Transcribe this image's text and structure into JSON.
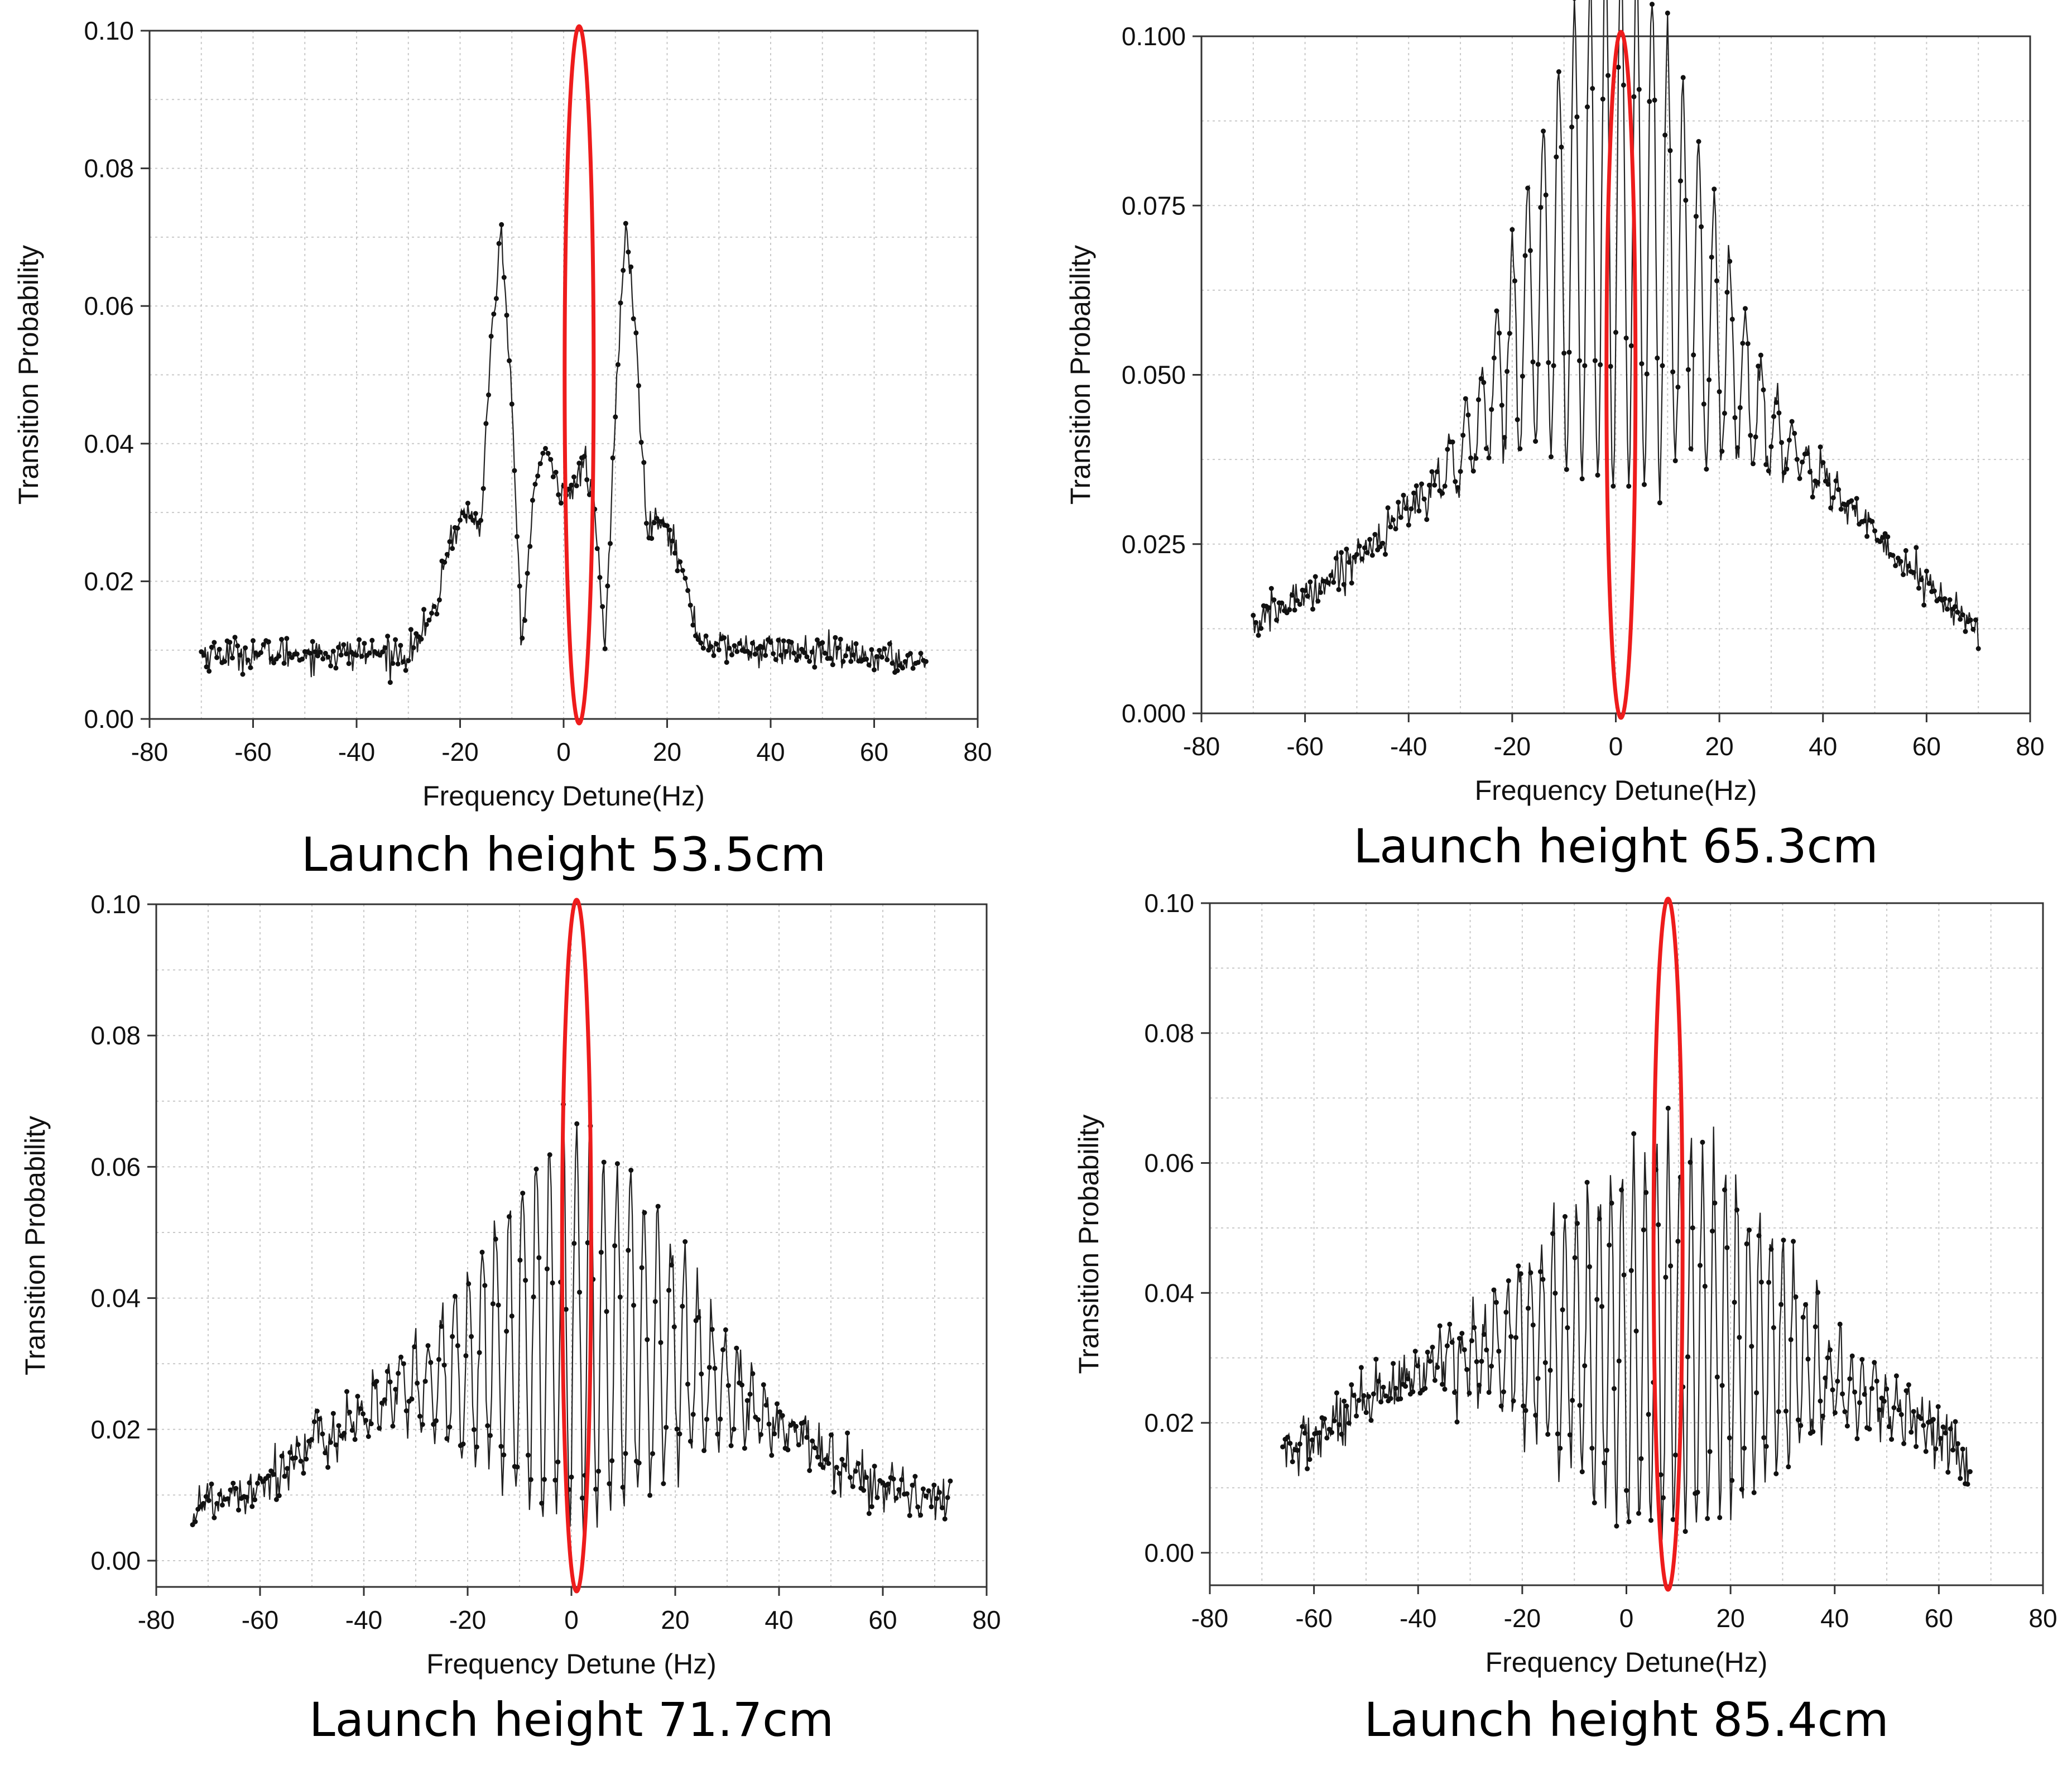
{
  "chart_data": [
    {
      "type": "line",
      "id": "p1",
      "caption": "Launch height 53.5cm",
      "xlabel": "Frequency Detune(Hz)",
      "ylabel": "Transition Probability",
      "xlim": [
        -80,
        80
      ],
      "ylim": [
        0,
        0.1
      ],
      "xticks": [
        -80,
        -60,
        -40,
        -20,
        0,
        20,
        40,
        60,
        80
      ],
      "xtick_labels": [
        "-80",
        "-60",
        "-40",
        "-20",
        "0",
        "20",
        "40",
        "60",
        "80"
      ],
      "yticks": [
        0,
        0.02,
        0.04,
        0.06,
        0.08,
        0.1
      ],
      "ytick_labels": [
        "0.00",
        "0.02",
        "0.04",
        "0.06",
        "0.08",
        "0.10"
      ],
      "x_range": [
        -70,
        70
      ],
      "grid": true,
      "highlight_x": 3,
      "highlight_color": "#ee1c1c",
      "profile": [
        [
          -70,
          0.0095
        ],
        [
          -30,
          0.0095
        ],
        [
          -25,
          0.015
        ],
        [
          -22,
          0.026
        ],
        [
          -19,
          0.03
        ],
        [
          -16,
          0.028
        ],
        [
          -14,
          0.055
        ],
        [
          -12,
          0.071
        ],
        [
          -10,
          0.045
        ],
        [
          -8,
          0.01
        ],
        [
          -6,
          0.032
        ],
        [
          -4,
          0.039
        ],
        [
          -1,
          0.034
        ],
        [
          2,
          0.033
        ],
        [
          4,
          0.038
        ],
        [
          6,
          0.03
        ],
        [
          8,
          0.01
        ],
        [
          10,
          0.045
        ],
        [
          12,
          0.072
        ],
        [
          14,
          0.055
        ],
        [
          16,
          0.028
        ],
        [
          19,
          0.03
        ],
        [
          22,
          0.024
        ],
        [
          26,
          0.012
        ],
        [
          30,
          0.0105
        ],
        [
          70,
          0.0085
        ]
      ],
      "oscillation": {
        "period": 0,
        "fraction": 0,
        "noise": 0.0012
      }
    },
    {
      "type": "line",
      "id": "p2",
      "caption": "Launch height 65.3cm",
      "xlabel": "Frequency Detune(Hz)",
      "ylabel": "Transition Probability",
      "xlim": [
        -80,
        80
      ],
      "ylim": [
        0,
        0.1
      ],
      "xticks": [
        -80,
        -60,
        -40,
        -20,
        0,
        20,
        40,
        60,
        80
      ],
      "xtick_labels": [
        "-80",
        "-60",
        "-40",
        "-20",
        "0",
        "20",
        "40",
        "60",
        "80"
      ],
      "yticks": [
        0,
        0.025,
        0.05,
        0.075,
        0.1
      ],
      "ytick_labels": [
        "0.000",
        "0.025",
        "0.050",
        "0.075",
        "0.100"
      ],
      "x_range": [
        -70,
        70
      ],
      "grid": true,
      "highlight_x": 1,
      "highlight_color": "#ee1c1c",
      "profile": [
        [
          -70,
          0.013
        ],
        [
          -55,
          0.02
        ],
        [
          -40,
          0.03
        ],
        [
          -30,
          0.038
        ],
        [
          -25,
          0.045
        ],
        [
          -20,
          0.055
        ],
        [
          -15,
          0.062
        ],
        [
          -10,
          0.068
        ],
        [
          -5,
          0.072
        ],
        [
          0,
          0.074
        ],
        [
          5,
          0.072
        ],
        [
          10,
          0.068
        ],
        [
          15,
          0.062
        ],
        [
          20,
          0.055
        ],
        [
          25,
          0.048
        ],
        [
          30,
          0.042
        ],
        [
          40,
          0.035
        ],
        [
          50,
          0.026
        ],
        [
          60,
          0.019
        ],
        [
          70,
          0.012
        ]
      ],
      "oscillation": {
        "period": 3.0,
        "fraction": 0.55,
        "noise": 0.0015,
        "cut": 25
      }
    },
    {
      "type": "line",
      "id": "p3",
      "caption": "Launch height 71.7cm",
      "xlabel": "Frequency Detune (Hz)",
      "ylabel": "Transition Probability",
      "xlim": [
        -80,
        80
      ],
      "ylim": [
        -0.004,
        0.1
      ],
      "xticks": [
        -80,
        -60,
        -40,
        -20,
        0,
        20,
        40,
        60,
        80
      ],
      "xtick_labels": [
        "-80",
        "-60",
        "-40",
        "-20",
        "0",
        "20",
        "40",
        "60",
        "80"
      ],
      "yticks": [
        0,
        0.02,
        0.04,
        0.06,
        0.08,
        0.1
      ],
      "ytick_labels": [
        "0.00",
        "0.02",
        "0.04",
        "0.06",
        "0.08",
        "0.10"
      ],
      "x_range": [
        -73,
        73
      ],
      "grid": true,
      "highlight_x": 1,
      "highlight_color": "#ee1c1c",
      "profile": [
        [
          -73,
          0.008
        ],
        [
          -60,
          0.012
        ],
        [
          -45,
          0.02
        ],
        [
          -35,
          0.025
        ],
        [
          -25,
          0.027
        ],
        [
          -20,
          0.03
        ],
        [
          -10,
          0.034
        ],
        [
          0,
          0.036
        ],
        [
          10,
          0.034
        ],
        [
          20,
          0.031
        ],
        [
          30,
          0.026
        ],
        [
          40,
          0.02
        ],
        [
          50,
          0.016
        ],
        [
          60,
          0.011
        ],
        [
          73,
          0.009
        ]
      ],
      "oscillation": {
        "period": 2.6,
        "fraction": 0.85,
        "noise": 0.0022,
        "cut": 28
      }
    },
    {
      "type": "line",
      "id": "p4",
      "caption": "Launch height 85.4cm",
      "xlabel": "Frequency Detune(Hz)",
      "ylabel": "Transition Probability",
      "xlim": [
        -80,
        80
      ],
      "ylim": [
        -0.005,
        0.1
      ],
      "xticks": [
        -80,
        -60,
        -40,
        -20,
        0,
        20,
        40,
        60,
        80
      ],
      "xtick_labels": [
        "-80",
        "-60",
        "-40",
        "-20",
        "0",
        "20",
        "40",
        "60",
        "80"
      ],
      "yticks": [
        0,
        0.02,
        0.04,
        0.06,
        0.08,
        0.1
      ],
      "ytick_labels": [
        "0.00",
        "0.02",
        "0.04",
        "0.06",
        "0.08",
        "0.10"
      ],
      "x_range": [
        -66,
        66
      ],
      "grid": true,
      "highlight_x": 8,
      "highlight_color": "#ee1c1c",
      "profile": [
        [
          -66,
          0.015
        ],
        [
          -55,
          0.02
        ],
        [
          -45,
          0.025
        ],
        [
          -35,
          0.029
        ],
        [
          -25,
          0.032
        ],
        [
          -15,
          0.033
        ],
        [
          0,
          0.032
        ],
        [
          15,
          0.033
        ],
        [
          25,
          0.032
        ],
        [
          35,
          0.028
        ],
        [
          45,
          0.025
        ],
        [
          55,
          0.021
        ],
        [
          66,
          0.014
        ]
      ],
      "oscillation": {
        "period": 2.2,
        "fraction": 0.9,
        "noise": 0.0025,
        "cut": 30
      }
    }
  ]
}
